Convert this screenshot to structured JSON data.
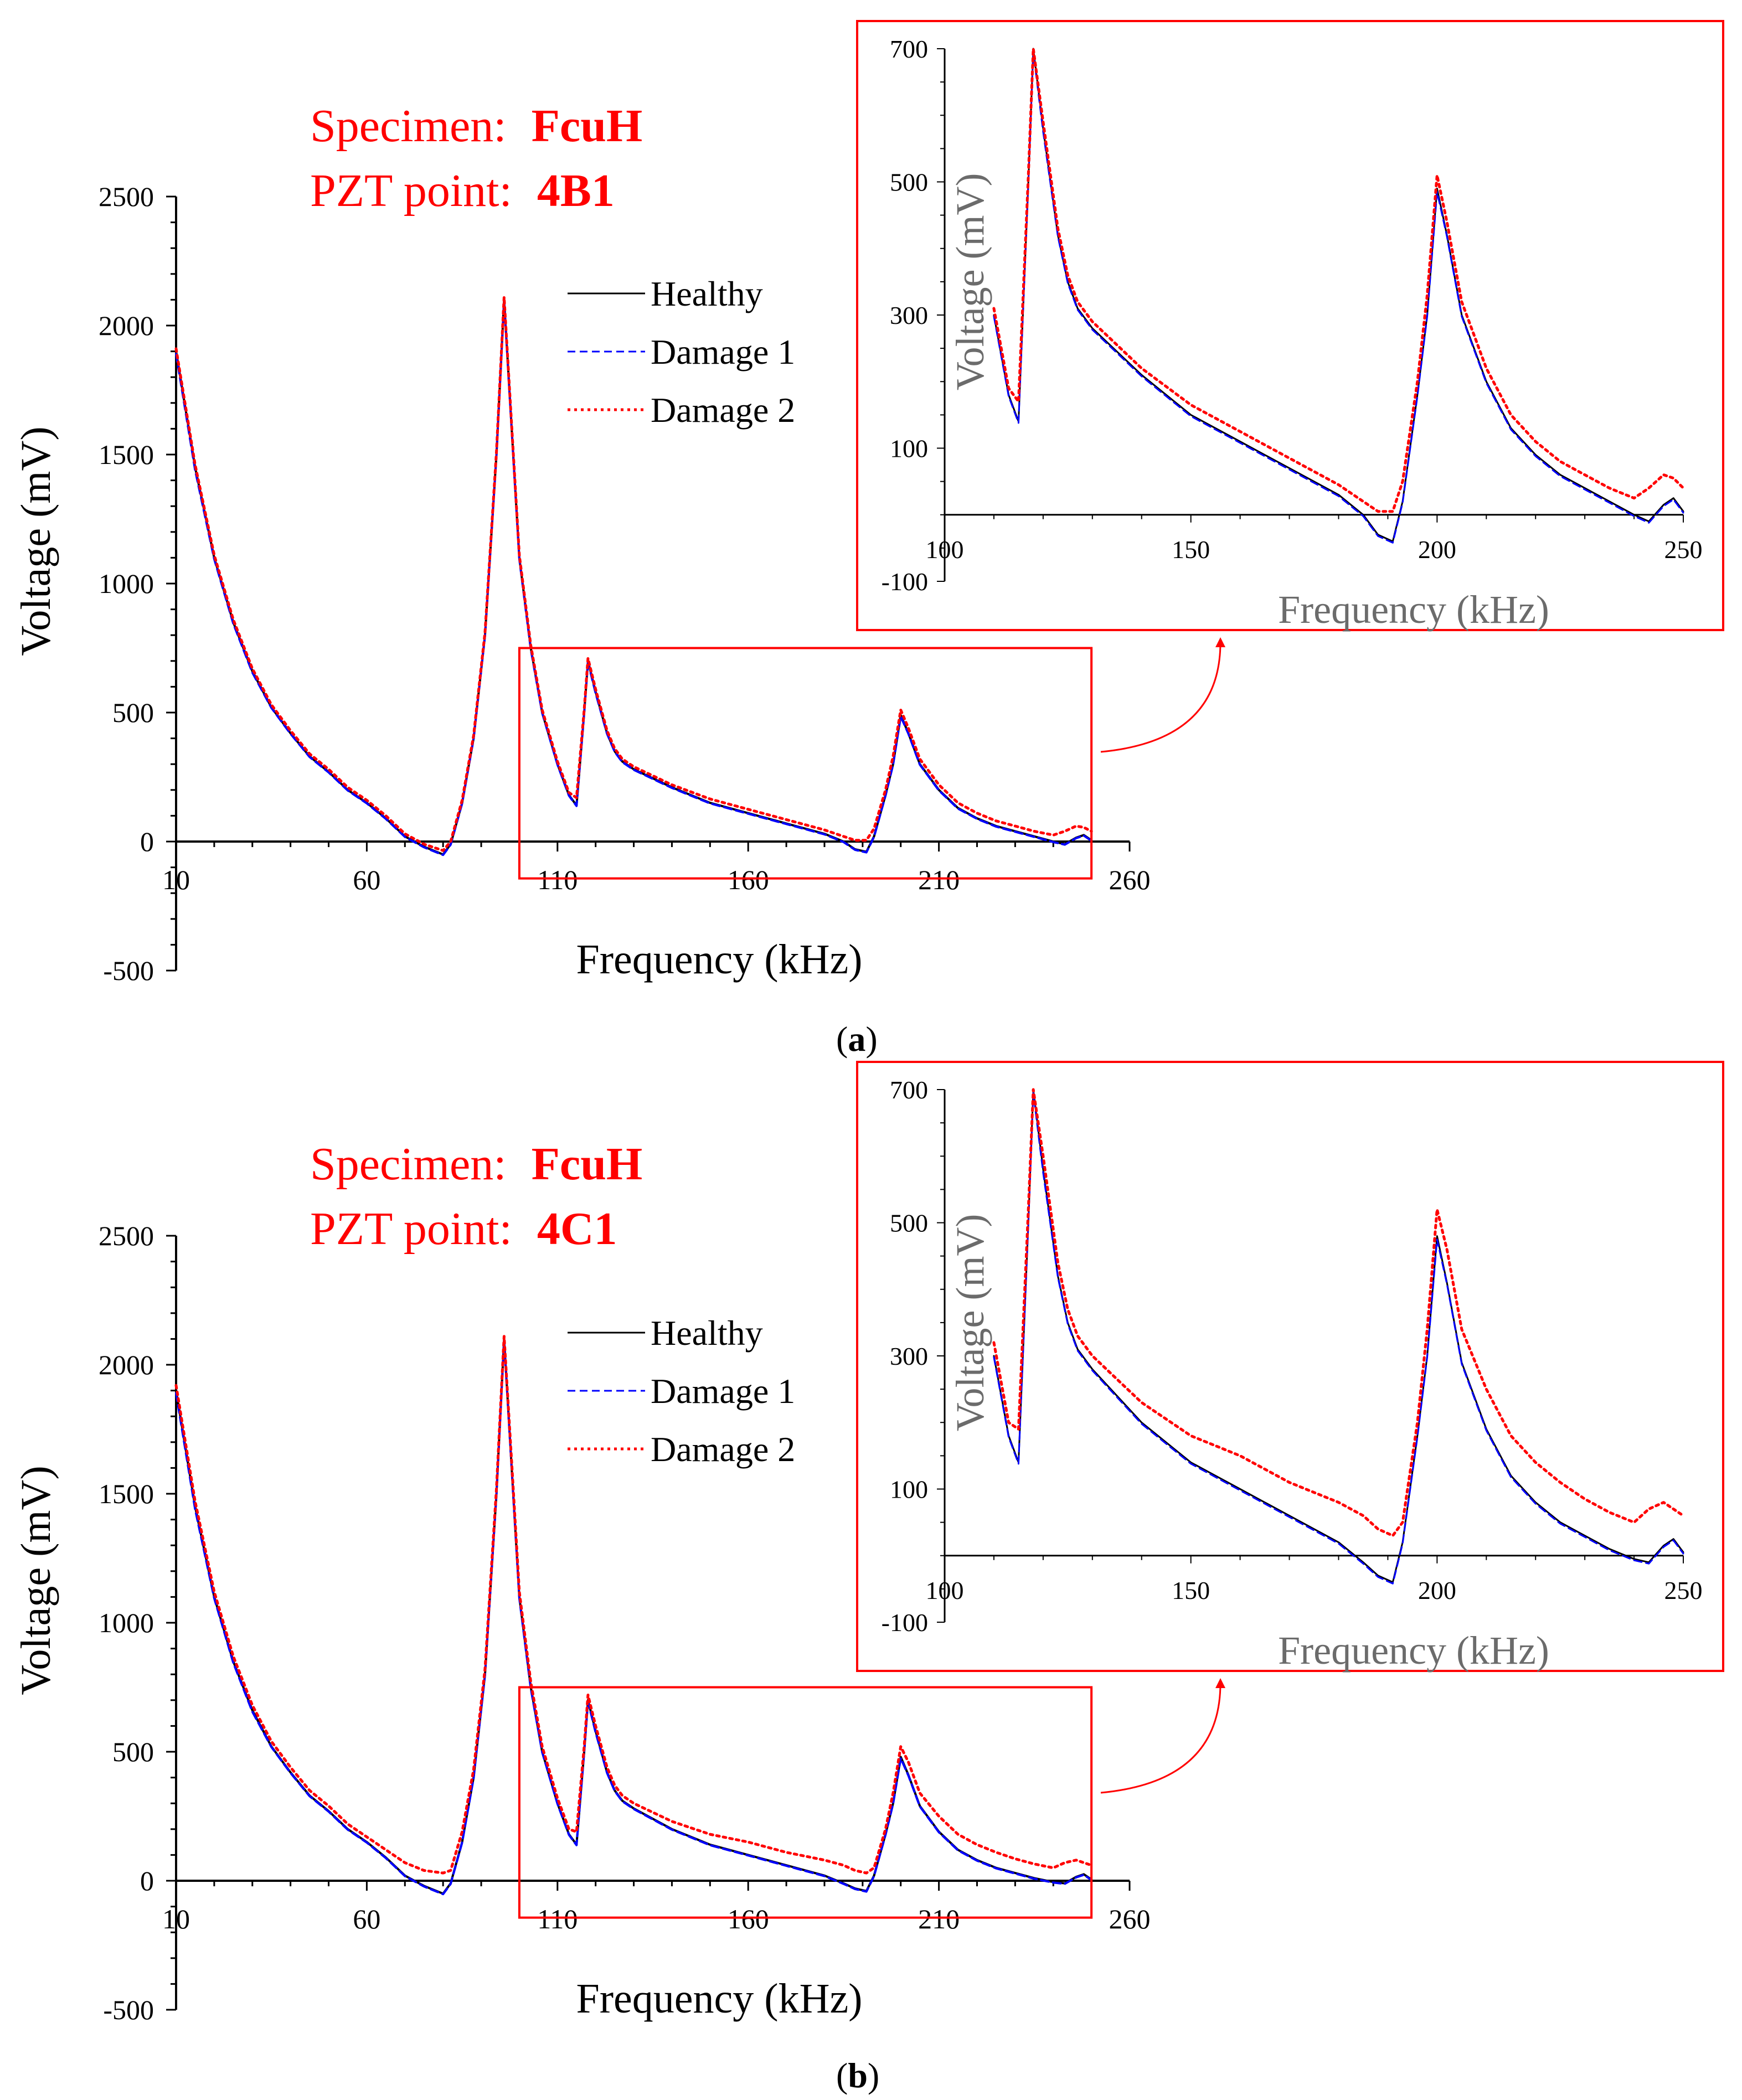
{
  "figure": {
    "panels": [
      {
        "id": "a",
        "label_open": "(",
        "label_letter": "a",
        "label_close": ")",
        "specimen_prefix": "Specimen:",
        "specimen_value": "FcuH",
        "pzt_prefix": "PZT point:",
        "pzt_value": "4B1"
      },
      {
        "id": "b",
        "label_open": "(",
        "label_letter": "b",
        "label_close": ")",
        "specimen_prefix": "Specimen:",
        "specimen_value": "FcuH",
        "pzt_prefix": "PZT point:",
        "pzt_value": "4C1"
      }
    ],
    "colors": {
      "healthy": "#000000",
      "damage1": "#0000ff",
      "damage2": "#ff0000",
      "highlight": "#ff0000"
    }
  },
  "chart_data": [
    {
      "panel": "a",
      "type": "line",
      "title": "",
      "xlabel": "Frequency (kHz)",
      "ylabel": "Voltage (mV)",
      "xlim": [
        10,
        260
      ],
      "ylim": [
        -500,
        2500
      ],
      "x_ticks": [
        10,
        60,
        110,
        160,
        210,
        260
      ],
      "y_ticks": [
        -500,
        0,
        500,
        1000,
        1500,
        2000,
        2500
      ],
      "legend": [
        "Healthy",
        "Damage 1",
        "Damage 2"
      ],
      "legend_position": "upper-center",
      "zoom_region": {
        "x": [
          100,
          250
        ],
        "y": [
          -100,
          750
        ]
      },
      "series": [
        {
          "name": "Healthy",
          "style": "solid",
          "x": [
            10,
            15,
            20,
            25,
            30,
            35,
            40,
            45,
            50,
            55,
            60,
            65,
            70,
            75,
            80,
            82,
            85,
            88,
            91,
            94,
            96,
            98,
            100,
            103,
            106,
            110,
            113,
            115,
            117,
            118,
            120,
            123,
            125,
            127,
            130,
            140,
            150,
            160,
            170,
            180,
            185,
            188,
            191,
            193,
            196,
            198,
            200,
            202,
            205,
            210,
            215,
            220,
            225,
            230,
            235,
            240,
            243,
            246,
            248,
            250
          ],
          "y": [
            1900,
            1450,
            1100,
            850,
            660,
            520,
            420,
            330,
            270,
            200,
            150,
            90,
            20,
            -20,
            -50,
            -10,
            150,
            400,
            800,
            1500,
            2100,
            1600,
            1100,
            750,
            500,
            300,
            180,
            140,
            500,
            700,
            580,
            420,
            350,
            310,
            280,
            210,
            150,
            110,
            70,
            30,
            0,
            -30,
            -40,
            20,
            180,
            300,
            490,
            420,
            300,
            200,
            130,
            90,
            60,
            40,
            20,
            0,
            -10,
            15,
            25,
            5
          ]
        },
        {
          "name": "Damage 1",
          "style": "dashed",
          "x": [
            10,
            15,
            20,
            25,
            30,
            35,
            40,
            45,
            50,
            55,
            60,
            65,
            70,
            75,
            80,
            82,
            85,
            88,
            91,
            94,
            96,
            98,
            100,
            103,
            106,
            110,
            113,
            115,
            117,
            118,
            120,
            123,
            125,
            127,
            130,
            140,
            150,
            160,
            170,
            180,
            185,
            188,
            191,
            193,
            196,
            198,
            200,
            202,
            205,
            210,
            215,
            220,
            225,
            230,
            235,
            240,
            243,
            246,
            248,
            250
          ],
          "y": [
            1890,
            1440,
            1095,
            845,
            655,
            518,
            418,
            328,
            268,
            198,
            148,
            88,
            18,
            -22,
            -52,
            -12,
            148,
            398,
            798,
            1498,
            2095,
            1595,
            1095,
            745,
            498,
            298,
            178,
            138,
            498,
            695,
            575,
            418,
            348,
            308,
            278,
            208,
            148,
            108,
            68,
            28,
            -2,
            -32,
            -42,
            18,
            178,
            298,
            485,
            418,
            298,
            198,
            128,
            88,
            58,
            38,
            18,
            -2,
            -12,
            13,
            23,
            3
          ]
        },
        {
          "name": "Damage 2",
          "style": "dotted",
          "x": [
            10,
            15,
            20,
            25,
            30,
            35,
            40,
            45,
            50,
            55,
            60,
            65,
            70,
            75,
            80,
            82,
            85,
            88,
            91,
            94,
            96,
            98,
            100,
            103,
            106,
            110,
            113,
            115,
            117,
            118,
            120,
            123,
            125,
            127,
            130,
            140,
            150,
            160,
            170,
            180,
            185,
            188,
            191,
            193,
            196,
            198,
            200,
            202,
            205,
            210,
            215,
            220,
            225,
            230,
            235,
            240,
            243,
            246,
            248,
            250
          ],
          "y": [
            1910,
            1460,
            1110,
            860,
            670,
            530,
            430,
            340,
            280,
            210,
            160,
            100,
            30,
            -10,
            -35,
            0,
            160,
            410,
            810,
            1510,
            2110,
            1610,
            1110,
            760,
            510,
            310,
            190,
            170,
            510,
            710,
            590,
            430,
            360,
            320,
            290,
            220,
            165,
            125,
            85,
            45,
            20,
            5,
            5,
            50,
            200,
            330,
            510,
            440,
            320,
            220,
            150,
            110,
            80,
            60,
            40,
            25,
            40,
            60,
            55,
            40
          ]
        }
      ]
    },
    {
      "panel": "a-inset",
      "type": "line",
      "title": "",
      "xlabel": "Frequency (kHz)",
      "ylabel": "Voltage (mV)",
      "xlim": [
        100,
        250
      ],
      "ylim": [
        -100,
        700
      ],
      "x_ticks": [
        100,
        150,
        200,
        250
      ],
      "y_ticks": [
        -100,
        100,
        300,
        500,
        700
      ],
      "series_from_panel": "a"
    },
    {
      "panel": "b",
      "type": "line",
      "title": "",
      "xlabel": "Frequency (kHz)",
      "ylabel": "Voltage (mV)",
      "xlim": [
        10,
        260
      ],
      "ylim": [
        -500,
        2500
      ],
      "x_ticks": [
        10,
        60,
        110,
        160,
        210,
        260
      ],
      "y_ticks": [
        -500,
        0,
        500,
        1000,
        1500,
        2000,
        2500
      ],
      "legend": [
        "Healthy",
        "Damage 1",
        "Damage 2"
      ],
      "legend_position": "upper-center",
      "zoom_region": {
        "x": [
          100,
          250
        ],
        "y": [
          -100,
          750
        ]
      },
      "series": [
        {
          "name": "Healthy",
          "style": "solid",
          "x": [
            10,
            15,
            20,
            25,
            30,
            35,
            40,
            45,
            50,
            55,
            60,
            65,
            70,
            75,
            80,
            82,
            85,
            88,
            91,
            94,
            96,
            98,
            100,
            103,
            106,
            110,
            113,
            115,
            117,
            118,
            120,
            123,
            125,
            127,
            130,
            140,
            150,
            160,
            170,
            180,
            185,
            188,
            191,
            193,
            196,
            198,
            200,
            202,
            205,
            210,
            215,
            220,
            225,
            230,
            235,
            240,
            243,
            246,
            248,
            250
          ],
          "y": [
            1900,
            1450,
            1100,
            850,
            660,
            520,
            420,
            330,
            270,
            200,
            150,
            90,
            20,
            -20,
            -50,
            -10,
            150,
            400,
            800,
            1500,
            2100,
            1600,
            1100,
            750,
            500,
            300,
            180,
            140,
            500,
            700,
            580,
            420,
            350,
            310,
            280,
            200,
            140,
            100,
            60,
            20,
            -10,
            -30,
            -40,
            20,
            180,
            300,
            480,
            410,
            290,
            190,
            120,
            80,
            50,
            30,
            10,
            -5,
            -10,
            15,
            25,
            5
          ]
        },
        {
          "name": "Damage 1",
          "style": "dashed",
          "x": [
            10,
            15,
            20,
            25,
            30,
            35,
            40,
            45,
            50,
            55,
            60,
            65,
            70,
            75,
            80,
            82,
            85,
            88,
            91,
            94,
            96,
            98,
            100,
            103,
            106,
            110,
            113,
            115,
            117,
            118,
            120,
            123,
            125,
            127,
            130,
            140,
            150,
            160,
            170,
            180,
            185,
            188,
            191,
            193,
            196,
            198,
            200,
            202,
            205,
            210,
            215,
            220,
            225,
            230,
            235,
            240,
            243,
            246,
            248,
            250
          ],
          "y": [
            1890,
            1440,
            1095,
            845,
            655,
            518,
            418,
            328,
            268,
            198,
            148,
            88,
            18,
            -22,
            -52,
            -12,
            148,
            398,
            798,
            1498,
            2095,
            1595,
            1095,
            745,
            498,
            298,
            178,
            138,
            498,
            695,
            575,
            418,
            348,
            308,
            278,
            198,
            138,
            98,
            58,
            18,
            -12,
            -32,
            -42,
            18,
            178,
            298,
            475,
            408,
            288,
            188,
            118,
            78,
            48,
            28,
            8,
            -7,
            -12,
            13,
            23,
            3
          ]
        },
        {
          "name": "Damage 2",
          "style": "dotted",
          "x": [
            10,
            15,
            20,
            25,
            30,
            35,
            40,
            45,
            50,
            55,
            60,
            65,
            70,
            75,
            80,
            82,
            85,
            88,
            91,
            94,
            96,
            98,
            100,
            103,
            106,
            110,
            113,
            115,
            117,
            118,
            120,
            123,
            125,
            127,
            130,
            140,
            150,
            160,
            170,
            180,
            185,
            188,
            191,
            193,
            196,
            198,
            200,
            202,
            205,
            210,
            215,
            220,
            225,
            230,
            235,
            240,
            243,
            246,
            248,
            250
          ],
          "y": [
            1920,
            1470,
            1120,
            870,
            680,
            540,
            440,
            350,
            290,
            220,
            170,
            120,
            70,
            40,
            30,
            40,
            190,
            430,
            820,
            1520,
            2110,
            1620,
            1120,
            770,
            520,
            320,
            200,
            190,
            520,
            720,
            600,
            440,
            370,
            330,
            300,
            230,
            180,
            150,
            110,
            80,
            60,
            40,
            30,
            50,
            200,
            340,
            520,
            460,
            340,
            250,
            180,
            140,
            110,
            85,
            65,
            50,
            70,
            80,
            70,
            60
          ]
        }
      ]
    },
    {
      "panel": "b-inset",
      "type": "line",
      "title": "",
      "xlabel": "Frequency (kHz)",
      "ylabel": "Voltage (mV)",
      "xlim": [
        100,
        250
      ],
      "ylim": [
        -100,
        700
      ],
      "x_ticks": [
        100,
        150,
        200,
        250
      ],
      "y_ticks": [
        -100,
        100,
        300,
        500,
        700
      ],
      "series_from_panel": "b"
    }
  ]
}
